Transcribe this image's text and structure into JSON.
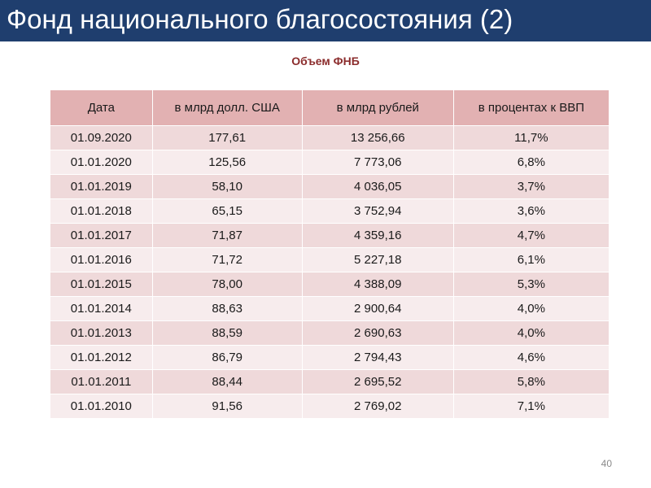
{
  "slide": {
    "title": "Фонд национального благосостояния (2)",
    "subtitle": "Объем ФНБ",
    "page_number": "40"
  },
  "table": {
    "headers": [
      "Дата",
      "в млрд долл. США",
      "в млрд рублей",
      "в процентах к ВВП"
    ],
    "rows": [
      [
        "01.09.2020",
        "177,61",
        "13 256,66",
        "11,7%"
      ],
      [
        "01.01.2020",
        "125,56",
        "7 773,06",
        "6,8%"
      ],
      [
        "01.01.2019",
        "58,10",
        "4 036,05",
        "3,7%"
      ],
      [
        "01.01.2018",
        "65,15",
        "3 752,94",
        "3,6%"
      ],
      [
        "01.01.2017",
        "71,87",
        "4 359,16",
        "4,7%"
      ],
      [
        "01.01.2016",
        "71,72",
        "5 227,18",
        "6,1%"
      ],
      [
        "01.01.2015",
        "78,00",
        "4 388,09",
        "5,3%"
      ],
      [
        "01.01.2014",
        "88,63",
        "2 900,64",
        "4,0%"
      ],
      [
        "01.01.2013",
        "88,59",
        "2 690,63",
        "4,0%"
      ],
      [
        "01.01.2012",
        "86,79",
        "2 794,43",
        "4,6%"
      ],
      [
        "01.01.2011",
        "88,44",
        "2 695,52",
        "5,8%"
      ],
      [
        "01.01.2010",
        "91,56",
        "2 769,02",
        "7,1%"
      ]
    ]
  },
  "colors": {
    "title_bar": "#1f3e6e",
    "subtitle": "#8b2c2c",
    "header_fill": "#e2b1b2",
    "row_fill_a": "#efd9da",
    "row_fill_b": "#f7eced"
  }
}
